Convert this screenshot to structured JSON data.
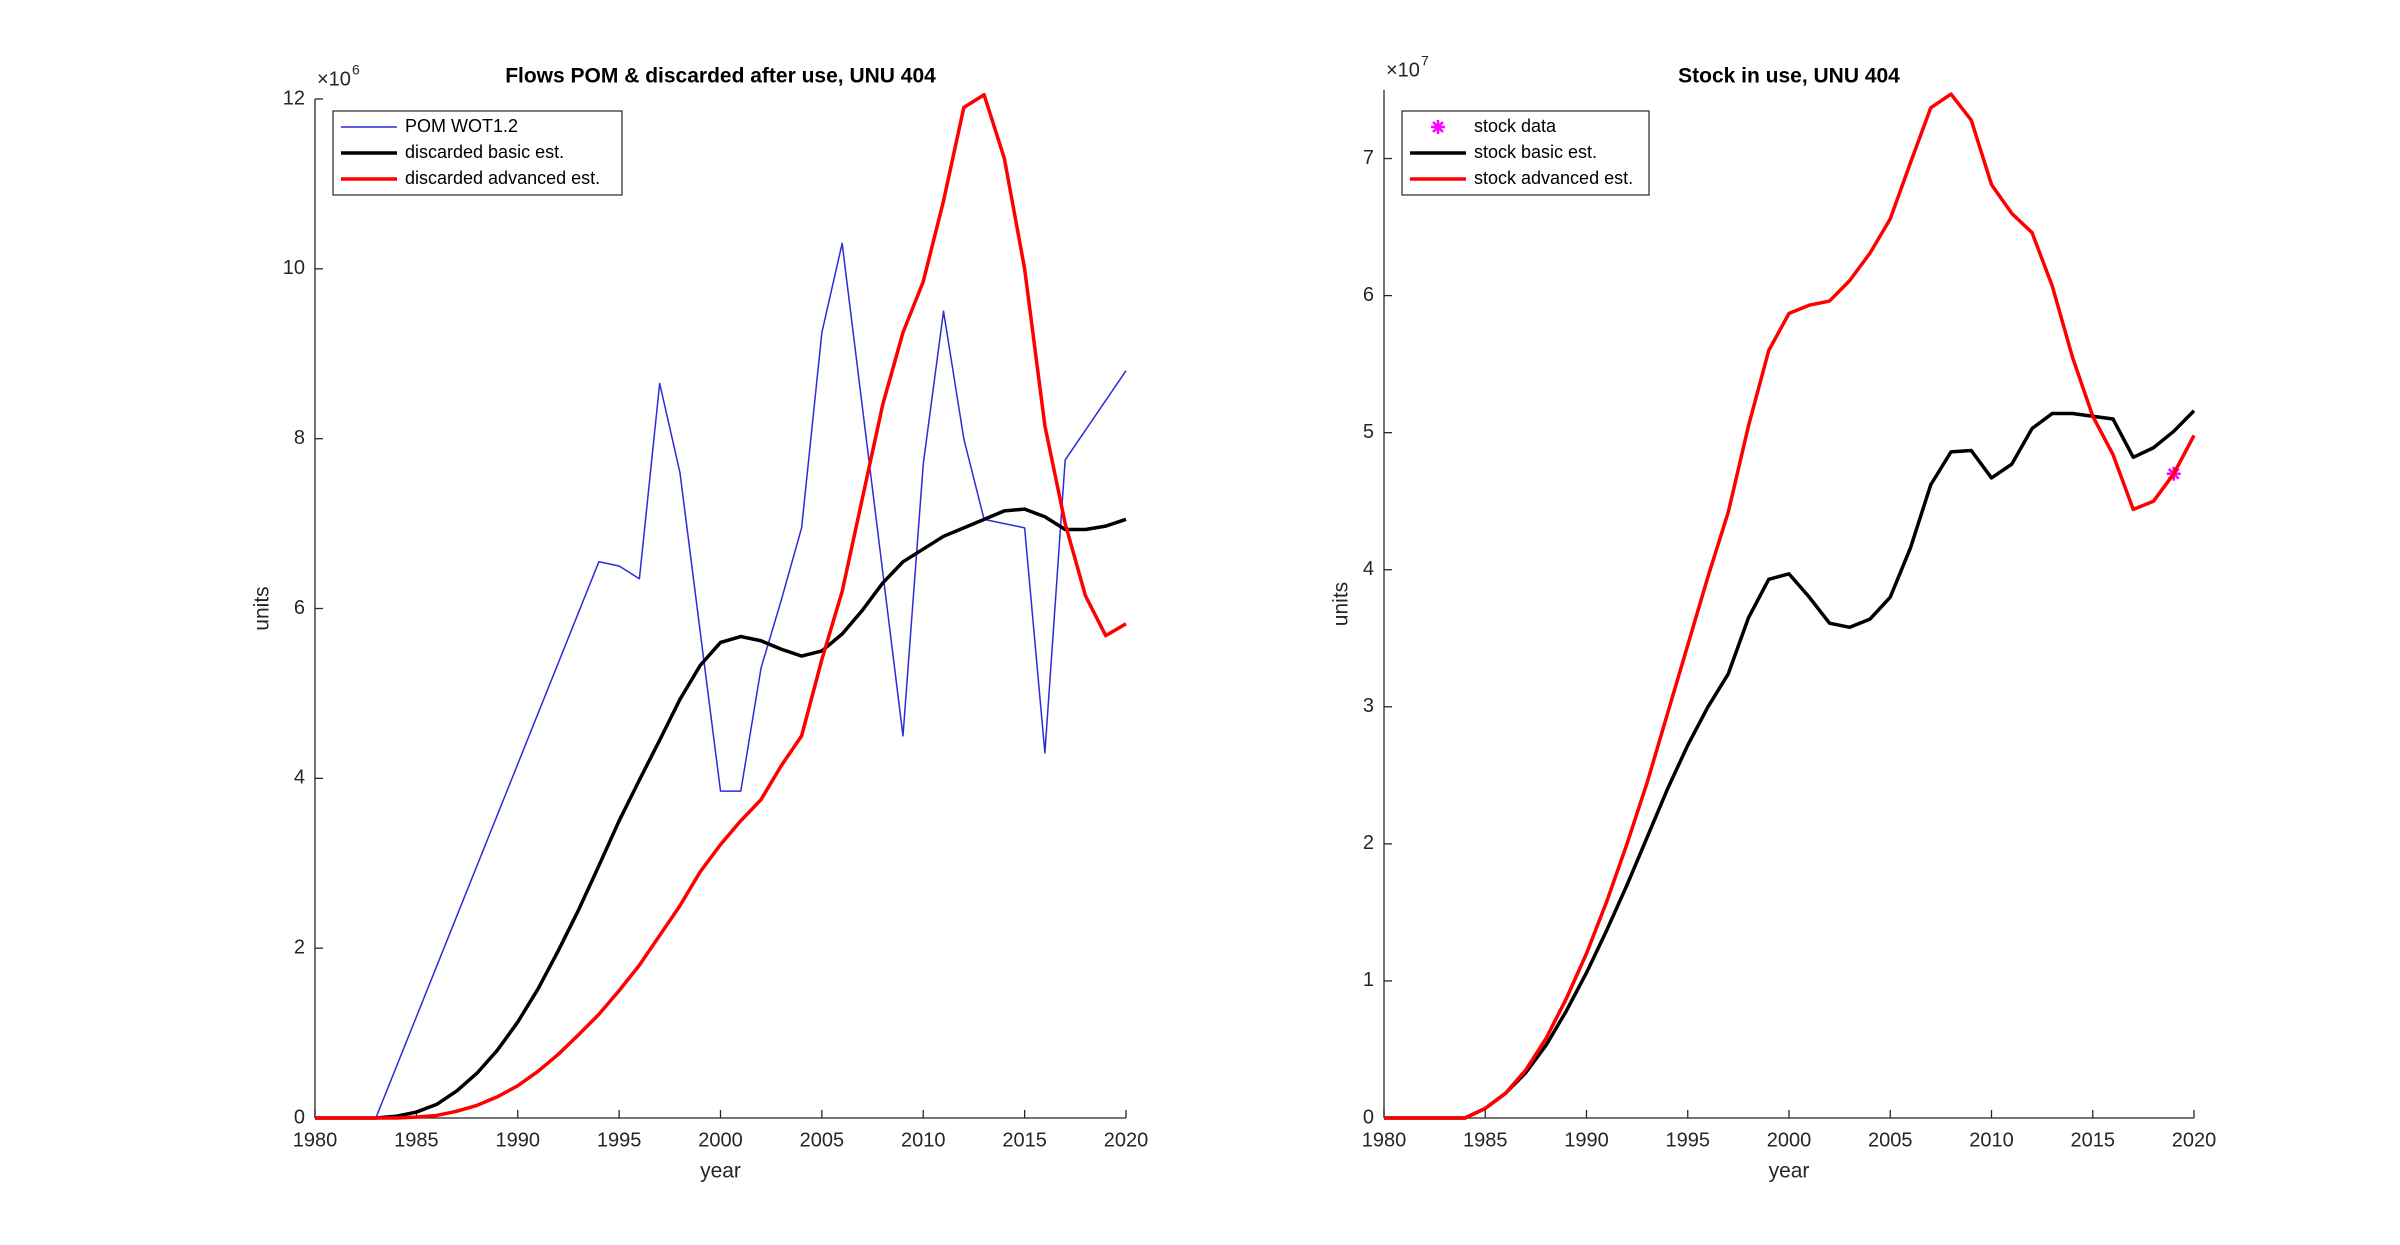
{
  "chart_data": [
    {
      "type": "line",
      "title": "Flows POM & discarded after use, UNU 404",
      "xlabel": "year",
      "ylabel": "units",
      "y_multiplier": {
        "base": "×10",
        "exponent": "6"
      },
      "xlim": [
        1980,
        2020
      ],
      "xticks": [
        1980,
        1985,
        1990,
        1995,
        2000,
        2005,
        2010,
        2015,
        2020
      ],
      "ylim": [
        0,
        12
      ],
      "yticks": [
        0,
        2,
        4,
        6,
        8,
        10,
        12
      ],
      "legend": "upper left",
      "x": [
        1980,
        1981,
        1982,
        1983,
        1984,
        1985,
        1986,
        1987,
        1988,
        1989,
        1990,
        1991,
        1992,
        1993,
        1994,
        1995,
        1996,
        1997,
        1998,
        1999,
        2000,
        2001,
        2002,
        2003,
        2004,
        2005,
        2006,
        2007,
        2008,
        2009,
        2010,
        2011,
        2012,
        2013,
        2014,
        2015,
        2016,
        2017,
        2018,
        2019,
        2020
      ],
      "series": [
        {
          "name": "POM WOT1.2",
          "color": "#2b2bd9",
          "width": "thin",
          "x": [
            1983,
            1994,
            1995,
            1996,
            1997,
            1998,
            2000,
            2001,
            2002,
            2003,
            2004,
            2005,
            2006,
            2009,
            2010,
            2011,
            2012,
            2013,
            2014,
            2015,
            2016,
            2017,
            2020
          ],
          "values": [
            0,
            6.55,
            6.5,
            6.35,
            8.65,
            7.6,
            3.85,
            3.85,
            5.3,
            6.1,
            6.95,
            9.25,
            10.3,
            4.5,
            7.7,
            9.5,
            8.0,
            7.05,
            7.0,
            6.95,
            4.3,
            7.75,
            8.8
          ]
        },
        {
          "name": "discarded basic est.",
          "color": "#000000",
          "width": "thick",
          "values": [
            0,
            0,
            0,
            0,
            0.02,
            0.07,
            0.16,
            0.32,
            0.53,
            0.8,
            1.13,
            1.52,
            1.97,
            2.45,
            2.97,
            3.5,
            3.98,
            4.45,
            4.93,
            5.33,
            5.6,
            5.67,
            5.62,
            5.52,
            5.44,
            5.5,
            5.7,
            5.98,
            6.3,
            6.55,
            6.7,
            6.85,
            6.95,
            7.05,
            7.15,
            7.17,
            7.08,
            6.93,
            6.93,
            6.97,
            7.05
          ]
        },
        {
          "name": "discarded advanced est.",
          "color": "#ff0000",
          "width": "thick",
          "values": [
            0,
            0,
            0,
            0,
            0,
            0.01,
            0.03,
            0.08,
            0.15,
            0.25,
            0.38,
            0.55,
            0.75,
            0.98,
            1.22,
            1.5,
            1.8,
            2.15,
            2.5,
            2.9,
            3.22,
            3.5,
            3.75,
            4.15,
            4.5,
            5.4,
            6.2,
            7.3,
            8.4,
            9.25,
            9.85,
            10.8,
            11.9,
            12.05,
            11.3,
            10.0,
            8.15,
            7.0,
            6.15,
            5.68,
            5.82
          ]
        }
      ]
    },
    {
      "type": "line",
      "title": "Stock in use, UNU 404",
      "xlabel": "year",
      "ylabel": "units",
      "y_multiplier": {
        "base": "×10",
        "exponent": "7"
      },
      "xlim": [
        1980,
        2020
      ],
      "xticks": [
        1980,
        1985,
        1990,
        1995,
        2000,
        2005,
        2010,
        2015,
        2020
      ],
      "ylim": [
        0,
        7.5
      ],
      "yticks": [
        0,
        1,
        2,
        3,
        4,
        5,
        6,
        7
      ],
      "legend": "upper left",
      "x": [
        1980,
        1981,
        1982,
        1983,
        1984,
        1985,
        1986,
        1987,
        1988,
        1989,
        1990,
        1991,
        1992,
        1993,
        1994,
        1995,
        1996,
        1997,
        1998,
        1999,
        2000,
        2001,
        2002,
        2003,
        2004,
        2005,
        2006,
        2007,
        2008,
        2009,
        2010,
        2011,
        2012,
        2013,
        2014,
        2015,
        2016,
        2017,
        2018,
        2019,
        2020
      ],
      "series": [
        {
          "name": "stock data",
          "color": "#ff00ff",
          "marker": "*",
          "x": [
            2019
          ],
          "values": [
            4.7
          ]
        },
        {
          "name": "stock basic est.",
          "color": "#000000",
          "width": "thick",
          "values": [
            0,
            0,
            0,
            0,
            0,
            0.07,
            0.18,
            0.33,
            0.53,
            0.78,
            1.06,
            1.37,
            1.7,
            2.05,
            2.4,
            2.72,
            3.0,
            3.24,
            3.65,
            3.93,
            3.97,
            3.8,
            3.61,
            3.58,
            3.64,
            3.8,
            4.16,
            4.62,
            4.86,
            4.87,
            4.67,
            4.77,
            5.03,
            5.14,
            5.14,
            5.12,
            5.1,
            4.82,
            4.89,
            5.01,
            5.16
          ]
        },
        {
          "name": "stock advanced est.",
          "color": "#ff0000",
          "width": "thick",
          "values": [
            0,
            0,
            0,
            0,
            0,
            0.07,
            0.18,
            0.35,
            0.58,
            0.87,
            1.2,
            1.58,
            2.0,
            2.45,
            2.95,
            3.45,
            3.95,
            4.42,
            5.05,
            5.6,
            5.87,
            5.93,
            5.96,
            6.11,
            6.31,
            6.56,
            6.97,
            7.37,
            7.47,
            7.28,
            6.81,
            6.6,
            6.46,
            6.07,
            5.55,
            5.12,
            4.84,
            4.44,
            4.5,
            4.7,
            4.98
          ]
        }
      ]
    }
  ]
}
